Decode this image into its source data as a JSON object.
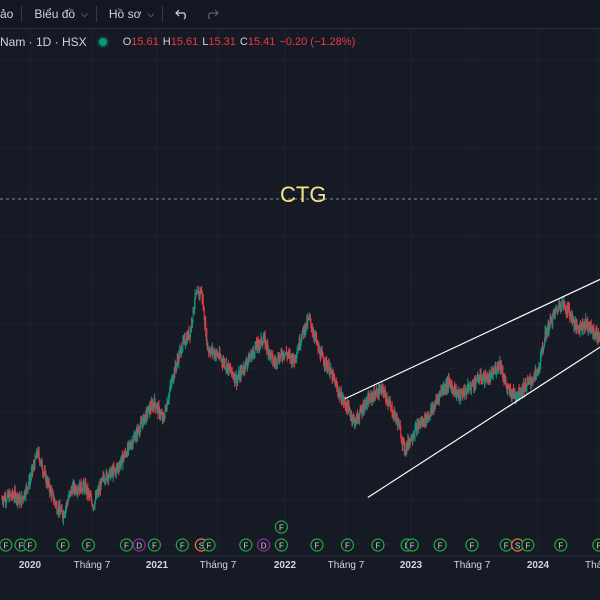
{
  "toolbar": {
    "items": [
      {
        "label": "ảo"
      },
      {
        "label": "Biểu đồ"
      },
      {
        "label": "Hồ sơ"
      }
    ]
  },
  "legend": {
    "symbol": "Nam · 1D · HSX",
    "open_k": "O",
    "open": "15.61",
    "high_k": "H",
    "high": "15.61",
    "low_k": "L",
    "low": "15.31",
    "close_k": "C",
    "close": "15.41",
    "change": "−0.20 (−1.28%)"
  },
  "watermark": "CTG",
  "colors": {
    "up": "#089981",
    "down": "#f23645",
    "watermark": "#f5e58a"
  },
  "chart_data": {
    "type": "candlestick",
    "x_labels": [
      "2020",
      "Tháng 7",
      "2021",
      "Tháng 7",
      "2022",
      "Tháng 7",
      "2023",
      "Tháng 7",
      "2024",
      "Tháng"
    ],
    "price_path": [
      [
        2019.9,
        14.5
      ],
      [
        2020.0,
        14.8
      ],
      [
        2020.05,
        14.3
      ],
      [
        2020.12,
        16.0
      ],
      [
        2020.18,
        18.2
      ],
      [
        2020.25,
        16.0
      ],
      [
        2020.33,
        13.9
      ],
      [
        2020.38,
        13.2
      ],
      [
        2020.45,
        15.3
      ],
      [
        2020.55,
        15.5
      ],
      [
        2020.62,
        14.0
      ],
      [
        2020.7,
        16.2
      ],
      [
        2020.8,
        16.8
      ],
      [
        2020.9,
        18.6
      ],
      [
        2021.0,
        20.5
      ],
      [
        2021.05,
        21.5
      ],
      [
        2021.1,
        22.2
      ],
      [
        2021.17,
        20.8
      ],
      [
        2021.25,
        24.5
      ],
      [
        2021.32,
        26.8
      ],
      [
        2021.38,
        27.8
      ],
      [
        2021.42,
        30.5
      ],
      [
        2021.47,
        31.2
      ],
      [
        2021.52,
        26.5
      ],
      [
        2021.6,
        26.0
      ],
      [
        2021.68,
        25.0
      ],
      [
        2021.75,
        24.0
      ],
      [
        2021.82,
        25.3
      ],
      [
        2021.9,
        26.6
      ],
      [
        2021.96,
        27.3
      ],
      [
        2022.04,
        25.4
      ],
      [
        2022.12,
        26.2
      ],
      [
        2022.2,
        25.6
      ],
      [
        2022.26,
        27.6
      ],
      [
        2022.32,
        28.9
      ],
      [
        2022.4,
        26.2
      ],
      [
        2022.48,
        24.8
      ],
      [
        2022.56,
        22.8
      ],
      [
        2022.62,
        21.8
      ],
      [
        2022.68,
        20.6
      ],
      [
        2022.76,
        22.1
      ],
      [
        2022.84,
        22.9
      ],
      [
        2022.9,
        23.2
      ],
      [
        2022.96,
        21.8
      ],
      [
        2023.02,
        20.6
      ],
      [
        2023.07,
        18.4
      ],
      [
        2023.12,
        19.4
      ],
      [
        2023.18,
        20.4
      ],
      [
        2023.24,
        20.9
      ],
      [
        2023.3,
        21.8
      ],
      [
        2023.36,
        23.2
      ],
      [
        2023.42,
        23.8
      ],
      [
        2023.5,
        22.7
      ],
      [
        2023.58,
        23.4
      ],
      [
        2023.66,
        24.2
      ],
      [
        2023.74,
        24.1
      ],
      [
        2023.82,
        25.4
      ],
      [
        2023.88,
        23.2
      ],
      [
        2023.94,
        22.8
      ],
      [
        2024.0,
        23.3
      ],
      [
        2024.06,
        23.9
      ],
      [
        2024.12,
        24.6
      ],
      [
        2024.18,
        27.7
      ],
      [
        2024.24,
        29.1
      ],
      [
        2024.3,
        30.2
      ],
      [
        2024.36,
        29.6
      ],
      [
        2024.42,
        28.2
      ],
      [
        2024.5,
        28.5
      ],
      [
        2024.58,
        27.6
      ],
      [
        2024.62,
        27.2
      ]
    ],
    "channel_upper": [
      [
        2022.6,
        22.5
      ],
      [
        2024.62,
        32.1
      ]
    ],
    "channel_lower": [
      [
        2022.78,
        14.6
      ],
      [
        2024.62,
        26.7
      ]
    ],
    "event_badges": [
      {
        "year": 2019.93,
        "label": "F",
        "kind": "F"
      },
      {
        "year": 2020.05,
        "label": "F",
        "kind": "F"
      },
      {
        "year": 2020.12,
        "label": "F",
        "kind": "F"
      },
      {
        "year": 2020.38,
        "label": "F",
        "kind": "F"
      },
      {
        "year": 2020.58,
        "label": "F",
        "kind": "F"
      },
      {
        "year": 2020.88,
        "label": "F",
        "kind": "F"
      },
      {
        "year": 2020.98,
        "label": "D",
        "kind": "D"
      },
      {
        "year": 2021.1,
        "label": "F",
        "kind": "F"
      },
      {
        "year": 2021.32,
        "label": "F",
        "kind": "F"
      },
      {
        "year": 2021.47,
        "label": "S",
        "kind": "S"
      },
      {
        "year": 2021.53,
        "label": "F",
        "kind": "F"
      },
      {
        "year": 2021.82,
        "label": "F",
        "kind": "F"
      },
      {
        "year": 2021.96,
        "label": "D",
        "kind": "D"
      },
      {
        "year": 2022.1,
        "label": "F",
        "kind": "F"
      },
      {
        "year": 2022.38,
        "label": "F",
        "kind": "F"
      },
      {
        "year": 2022.62,
        "label": "F",
        "kind": "F"
      },
      {
        "year": 2022.86,
        "label": "F",
        "kind": "F"
      },
      {
        "year": 2023.09,
        "label": "F",
        "kind": "F"
      },
      {
        "year": 2023.13,
        "label": "F",
        "kind": "F"
      },
      {
        "year": 2023.35,
        "label": "F",
        "kind": "F"
      },
      {
        "year": 2023.6,
        "label": "F",
        "kind": "F"
      },
      {
        "year": 2023.87,
        "label": "F",
        "kind": "F"
      },
      {
        "year": 2023.96,
        "label": "S",
        "kind": "S"
      },
      {
        "year": 2024.04,
        "label": "F",
        "kind": "F"
      },
      {
        "year": 2024.3,
        "label": "F",
        "kind": "F"
      },
      {
        "year": 2024.6,
        "label": "F",
        "kind": "F"
      }
    ],
    "event_badges_upper": [
      {
        "year": 2022.1,
        "label": "F",
        "kind": "F"
      }
    ]
  }
}
